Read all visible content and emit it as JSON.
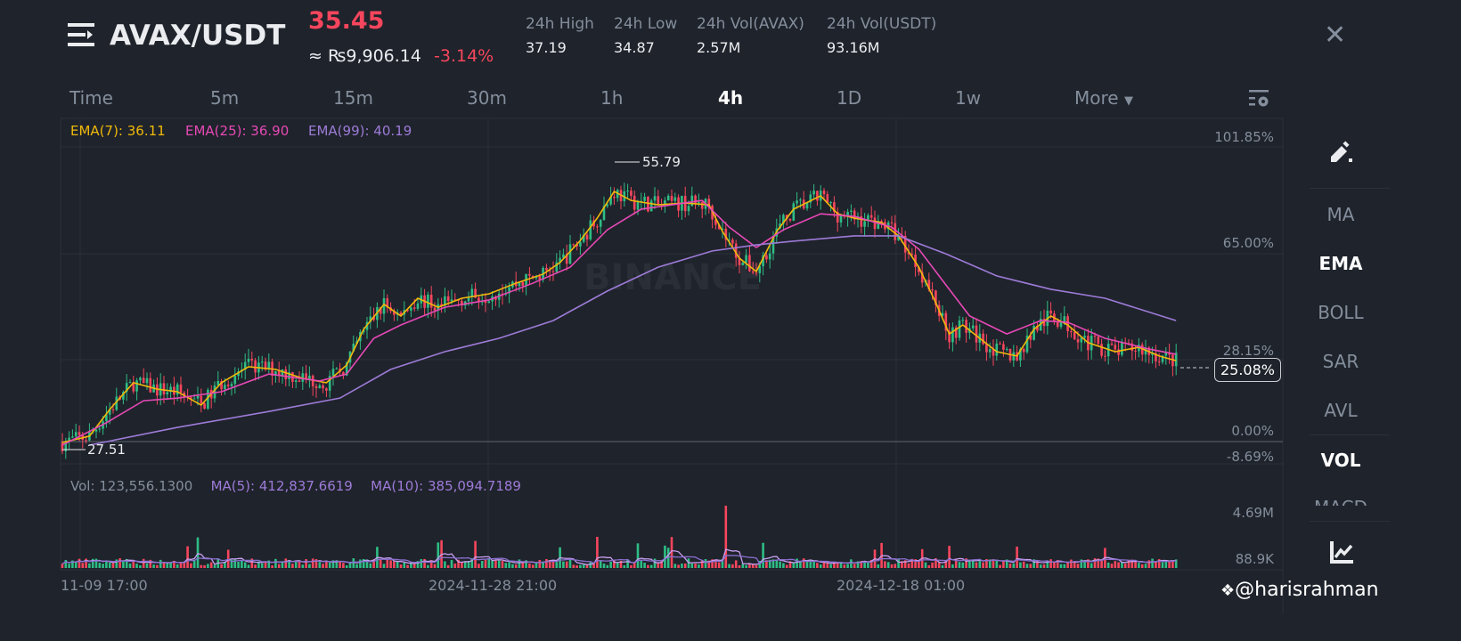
{
  "header": {
    "pair": "AVAX/USDT",
    "price": "35.45",
    "approx": "≈ ₨9,906.14",
    "change": "-3.14%",
    "stats": [
      {
        "label": "24h High",
        "value": "37.19"
      },
      {
        "label": "24h Low",
        "value": "34.87"
      },
      {
        "label": "24h Vol(AVAX)",
        "value": "2.57M"
      },
      {
        "label": "24h Vol(USDT)",
        "value": "93.16M"
      }
    ]
  },
  "timeframes": [
    "Time",
    "5m",
    "15m",
    "30m",
    "1h",
    "4h",
    "1D",
    "1w",
    "More"
  ],
  "active_timeframe": "4h",
  "legend": {
    "ema7": "EMA(7): 36.11",
    "ema25": "EMA(25): 36.90",
    "ema99": "EMA(99): 40.19"
  },
  "price_axis": [
    "101.85%",
    "65.00%",
    "28.15%",
    "0.00%",
    "-8.69%"
  ],
  "current_value": "25.08%",
  "high_marker": "55.79",
  "low_marker": "27.51",
  "watermark": "BINANCE",
  "volume": {
    "legend": "Vol: 123,556.1300",
    "ma5": "MA(5): 412,837.6619",
    "ma10": "MA(10): 385,094.7189",
    "axis": [
      "4.69M",
      "88.9K"
    ]
  },
  "dates": [
    "11-09 17:00",
    "2024-11-28 21:00",
    "2024-12-18 01:00"
  ],
  "side": {
    "items": [
      "MA",
      "EMA",
      "BOLL",
      "SAR",
      "AVL",
      "VOL",
      "MACD"
    ],
    "active": [
      "EMA",
      "VOL"
    ]
  },
  "credit": "@harisrahman",
  "colors": {
    "up": "#2ebd85",
    "down": "#f6465d",
    "ema7": "#f0b90b",
    "ema25": "#e649b6",
    "ema99": "#9d7bd8",
    "bg": "#1f232b"
  },
  "chart_data": {
    "type": "candlestick",
    "interval": "4h",
    "y_unit": "%",
    "ylim": [
      -8.69,
      101.85
    ],
    "series": [
      {
        "name": "EMA(7)",
        "points": [
          [
            0,
            -4.0
          ],
          [
            8,
            -1.8
          ],
          [
            14,
            7.4
          ],
          [
            21,
            16.6
          ],
          [
            28,
            14.4
          ],
          [
            34,
            13.5
          ],
          [
            41,
            8.9
          ],
          [
            47,
            16.6
          ],
          [
            55,
            22.1
          ],
          [
            63,
            21.2
          ],
          [
            71,
            18.1
          ],
          [
            78,
            16.6
          ],
          [
            84,
            22.7
          ],
          [
            89,
            35.0
          ],
          [
            95,
            43.6
          ],
          [
            100,
            39.6
          ],
          [
            105,
            45.7
          ],
          [
            111,
            42.6
          ],
          [
            118,
            45.7
          ],
          [
            126,
            47.2
          ],
          [
            134,
            50.9
          ],
          [
            142,
            54.0
          ],
          [
            147,
            58.0
          ],
          [
            153,
            65.6
          ],
          [
            158,
            73.3
          ],
          [
            163,
            82.5
          ],
          [
            168,
            79.4
          ],
          [
            176,
            77.9
          ],
          [
            184,
            78.5
          ],
          [
            191,
            77.9
          ],
          [
            195,
            68.7
          ],
          [
            200,
            59.5
          ],
          [
            205,
            54.9
          ],
          [
            211,
            68.7
          ],
          [
            216,
            76.4
          ],
          [
            224,
            81.0
          ],
          [
            229,
            74.8
          ],
          [
            234,
            73.3
          ],
          [
            242,
            71.8
          ],
          [
            247,
            67.2
          ],
          [
            253,
            56.4
          ],
          [
            258,
            44.2
          ],
          [
            262,
            33.4
          ],
          [
            266,
            36.5
          ],
          [
            271,
            31.9
          ],
          [
            276,
            27.3
          ],
          [
            282,
            25.8
          ],
          [
            287,
            35.0
          ],
          [
            292,
            39.6
          ],
          [
            297,
            36.5
          ],
          [
            303,
            30.4
          ],
          [
            311,
            27.3
          ],
          [
            318,
            28.8
          ],
          [
            324,
            25.8
          ],
          [
            329,
            24.2
          ]
        ]
      },
      {
        "name": "EMA(25)",
        "points": [
          [
            0,
            -4.9
          ],
          [
            13,
            2.8
          ],
          [
            24,
            10.4
          ],
          [
            34,
            11.3
          ],
          [
            47,
            13.5
          ],
          [
            61,
            19.6
          ],
          [
            76,
            17.2
          ],
          [
            84,
            19.6
          ],
          [
            92,
            31.9
          ],
          [
            100,
            36.5
          ],
          [
            113,
            42.6
          ],
          [
            126,
            45.1
          ],
          [
            139,
            50.9
          ],
          [
            150,
            56.4
          ],
          [
            161,
            69.3
          ],
          [
            171,
            76.4
          ],
          [
            189,
            79.4
          ],
          [
            197,
            70.2
          ],
          [
            205,
            63.2
          ],
          [
            213,
            69.3
          ],
          [
            224,
            74.8
          ],
          [
            234,
            73.9
          ],
          [
            245,
            70.2
          ],
          [
            253,
            62.6
          ],
          [
            261,
            50.3
          ],
          [
            268,
            39.6
          ],
          [
            279,
            33.4
          ],
          [
            289,
            38.0
          ],
          [
            297,
            37.4
          ],
          [
            308,
            31.9
          ],
          [
            321,
            28.2
          ],
          [
            329,
            26.4
          ]
        ]
      },
      {
        "name": "EMA(99)",
        "points": [
          [
            8,
            -4.9
          ],
          [
            34,
            1.2
          ],
          [
            61,
            6.7
          ],
          [
            82,
            11.3
          ],
          [
            97,
            21.2
          ],
          [
            113,
            27.3
          ],
          [
            129,
            31.9
          ],
          [
            145,
            38.0
          ],
          [
            161,
            48.2
          ],
          [
            176,
            56.4
          ],
          [
            192,
            62.0
          ],
          [
            205,
            64.1
          ],
          [
            218,
            65.6
          ],
          [
            234,
            67.2
          ],
          [
            247,
            67.2
          ],
          [
            261,
            61.0
          ],
          [
            276,
            53.4
          ],
          [
            292,
            48.8
          ],
          [
            308,
            45.7
          ],
          [
            329,
            38.0
          ]
        ]
      }
    ]
  }
}
